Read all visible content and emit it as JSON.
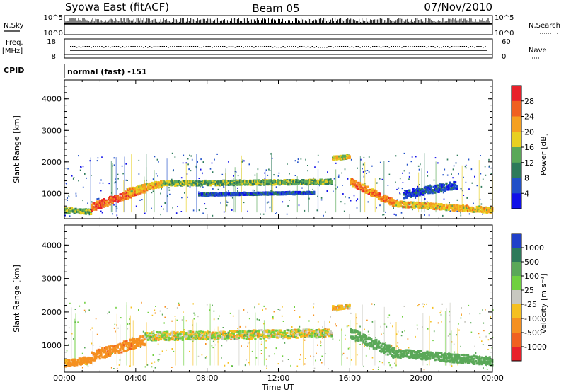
{
  "header": {
    "title_left": "Syowa East (fitACF)",
    "title_center": "Beam 05",
    "title_right": "07/Nov/2010"
  },
  "strip_labels": {
    "nsky": "N.Sky",
    "nsearch": "N.Search",
    "freq_line1": "Freq.",
    "freq_line2": "[MHz]",
    "nave": "Nave",
    "cpid": "CPID",
    "cpid_value": "normal (fast) -151",
    "nsky_top_tick": "10^5",
    "nsky_bottom_tick": "10^0",
    "nsearch_top_tick": "10^5",
    "nsearch_bottom_tick": "10^0",
    "freq_top_tick": "18",
    "freq_bottom_tick": "8",
    "nave_top_tick": "60",
    "nave_bottom_tick": "0"
  },
  "colorbars": {
    "power": {
      "label": "Power [dB]",
      "ticks": [
        "28",
        "24",
        "20",
        "16",
        "12",
        "8",
        "4"
      ],
      "colors": [
        "#e8202a",
        "#f06020",
        "#f5a020",
        "#e8d020",
        "#5aa858",
        "#2d7a5a",
        "#2050c8",
        "#1010e8"
      ]
    },
    "velocity": {
      "label": "Velocity [m s⁻¹]",
      "ticks": [
        "1000",
        "500",
        "100",
        "25",
        "-25",
        "-100",
        "-500",
        "-1000"
      ],
      "colors": [
        "#2040c8",
        "#2d7a5a",
        "#5aa858",
        "#70d040",
        "#c8c8c0",
        "#f5c020",
        "#f59020",
        "#f06020",
        "#e8202a"
      ]
    }
  },
  "chart_data": [
    {
      "type": "heatmap",
      "name": "power",
      "ylabel": "Slant Range [km]",
      "xlabel": "Time UT",
      "x_ticks": [
        "00:00",
        "04:00",
        "08:00",
        "12:00",
        "16:00",
        "20:00",
        "00:00"
      ],
      "y_ticks": [
        "4000",
        "3000",
        "2000",
        "1000"
      ],
      "ylim": [
        200,
        4600
      ],
      "xlim": [
        0,
        24
      ],
      "colorbar": "Power [dB]",
      "echo_bands": [
        {
          "t_start": 0.0,
          "t_end": 1.5,
          "r_start": 500,
          "r_end": 450,
          "width": 150,
          "value_db": 14
        },
        {
          "t_start": 1.5,
          "t_end": 4.5,
          "r_start": 600,
          "r_end": 1200,
          "width": 250,
          "value_db": 26
        },
        {
          "t_start": 3.5,
          "t_end": 5.5,
          "r_start": 1100,
          "r_end": 1350,
          "width": 200,
          "value_db": 20
        },
        {
          "t_start": 5.5,
          "t_end": 15.0,
          "r_start": 1350,
          "r_end": 1400,
          "width": 150,
          "value_db": 14
        },
        {
          "t_start": 7.5,
          "t_end": 14.0,
          "r_start": 1000,
          "r_end": 1050,
          "width": 80,
          "value_db": 6
        },
        {
          "t_start": 15.0,
          "t_end": 16.0,
          "r_start": 2150,
          "r_end": 2200,
          "width": 120,
          "value_db": 18
        },
        {
          "t_start": 16.0,
          "t_end": 18.5,
          "r_start": 1400,
          "r_end": 700,
          "width": 220,
          "value_db": 24
        },
        {
          "t_start": 18.5,
          "t_end": 24.0,
          "r_start": 700,
          "r_end": 500,
          "width": 180,
          "value_db": 20
        },
        {
          "t_start": 19.0,
          "t_end": 22.0,
          "r_start": 1000,
          "r_end": 1300,
          "width": 250,
          "value_db": 6
        }
      ]
    },
    {
      "type": "heatmap",
      "name": "velocity",
      "ylabel": "Slant Range [km]",
      "xlabel": "Time UT",
      "x_ticks": [
        "00:00",
        "04:00",
        "08:00",
        "12:00",
        "16:00",
        "20:00",
        "00:00"
      ],
      "y_ticks": [
        "4000",
        "3000",
        "2000",
        "1000"
      ],
      "ylim": [
        200,
        4600
      ],
      "xlim": [
        0,
        24
      ],
      "colorbar": "Velocity [m s⁻¹]",
      "echo_bands": [
        {
          "t_start": 0.0,
          "t_end": 1.5,
          "r_start": 500,
          "r_end": 600,
          "width": 200,
          "value_ms": -200
        },
        {
          "t_start": 1.5,
          "t_end": 4.5,
          "r_start": 700,
          "r_end": 1200,
          "width": 300,
          "value_ms": -400
        },
        {
          "t_start": 4.5,
          "t_end": 15.0,
          "r_start": 1300,
          "r_end": 1400,
          "width": 250,
          "value_ms": 0
        },
        {
          "t_start": 15.0,
          "t_end": 16.0,
          "r_start": 2150,
          "r_end": 2200,
          "width": 120,
          "value_ms": -80
        },
        {
          "t_start": 16.0,
          "t_end": 18.5,
          "r_start": 1400,
          "r_end": 800,
          "width": 300,
          "value_ms": 300
        },
        {
          "t_start": 18.5,
          "t_end": 24.0,
          "r_start": 800,
          "r_end": 550,
          "width": 250,
          "value_ms": 250
        }
      ]
    }
  ]
}
